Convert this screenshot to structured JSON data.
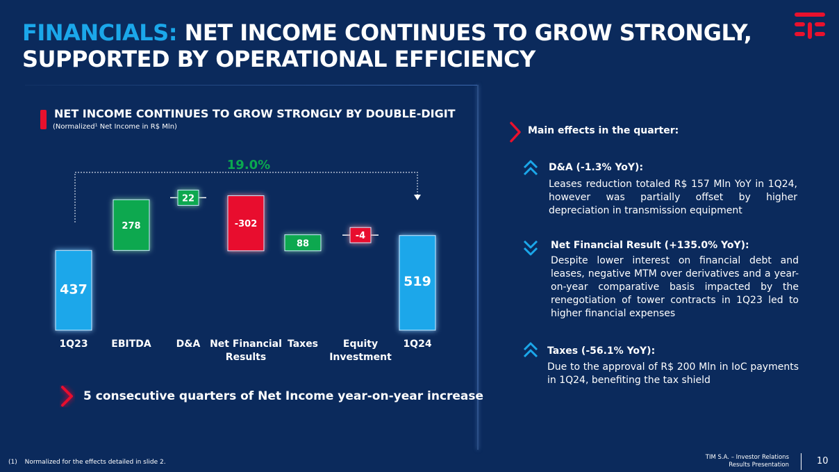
{
  "header": {
    "title_accent": "FINANCIALS:",
    "title_line1": "NET INCOME CONTINUES TO GROW STRONGLY,",
    "title_line2": "SUPPORTED BY OPERATIONAL EFFICIENCY"
  },
  "chart_panel": {
    "title": "NET INCOME CONTINUES TO GROW STRONGLY BY DOUBLE-DIGIT",
    "subtitle": "(Normalized¹ Net Income in R$ Mln)",
    "growth_label": "19.0%",
    "bottom_note": "5 consecutive quarters of Net Income year-on-year increase"
  },
  "chart_data": {
    "type": "waterfall",
    "title": "NET INCOME CONTINUES TO GROW STRONGLY BY DOUBLE-DIGIT",
    "ylabel": "Normalized Net Income in R$ Mln",
    "categories": [
      "1Q23",
      "EBITDA",
      "D&A",
      "Net Financial Results",
      "Taxes",
      "Equity Investment",
      "1Q24"
    ],
    "category_lines": [
      [
        "1Q23"
      ],
      [
        "EBITDA"
      ],
      [
        "D&A"
      ],
      [
        "Net Financial",
        "Results"
      ],
      [
        "Taxes"
      ],
      [
        "Equity",
        "Investment"
      ],
      [
        "1Q24"
      ]
    ],
    "values": [
      437,
      278,
      22,
      -302,
      88,
      -4,
      519
    ],
    "labels": [
      "437",
      "278",
      "22",
      "-302",
      "88",
      "-4",
      "519"
    ],
    "kinds": [
      "total",
      "increase",
      "increase",
      "decrease",
      "increase",
      "decrease",
      "total"
    ],
    "growth": "19.0%",
    "colors": {
      "total": "#1ba7ea",
      "increase": "#0aa84f",
      "decrease": "#e8112d"
    }
  },
  "effects": {
    "title": "Main effects in the quarter:",
    "items": [
      {
        "heading": "D&A (-1.3% YoY):",
        "direction": "up",
        "body": "Leases reduction totaled R$ 157 Mln YoY in 1Q24, however was partially offset by higher depreciation in transmission equipment"
      },
      {
        "heading": "Net Financial Result (+135.0% YoY):",
        "direction": "down",
        "body": "Despite lower interest on financial debt and leases, negative MTM over derivatives and a year-on-year comparative basis impacted by the renegotiation of tower contracts in 1Q23 led to higher financial expenses"
      },
      {
        "heading": "Taxes (-56.1% YoY):",
        "direction": "up",
        "body": "Due to the approval of R$ 200 Mln in IoC payments in 1Q24, benefiting the tax shield"
      }
    ]
  },
  "footer": {
    "footnote_num": "(1)",
    "footnote": "Normalized for the effects detailed in slide 2.",
    "company_line1": "TIM S.A. – Investor Relations",
    "company_line2": "Results Presentation",
    "page": "10"
  },
  "colors": {
    "background": "#0b2a5c",
    "accent_blue": "#1ba7ea",
    "green": "#0aa84f",
    "red": "#e8112d"
  }
}
